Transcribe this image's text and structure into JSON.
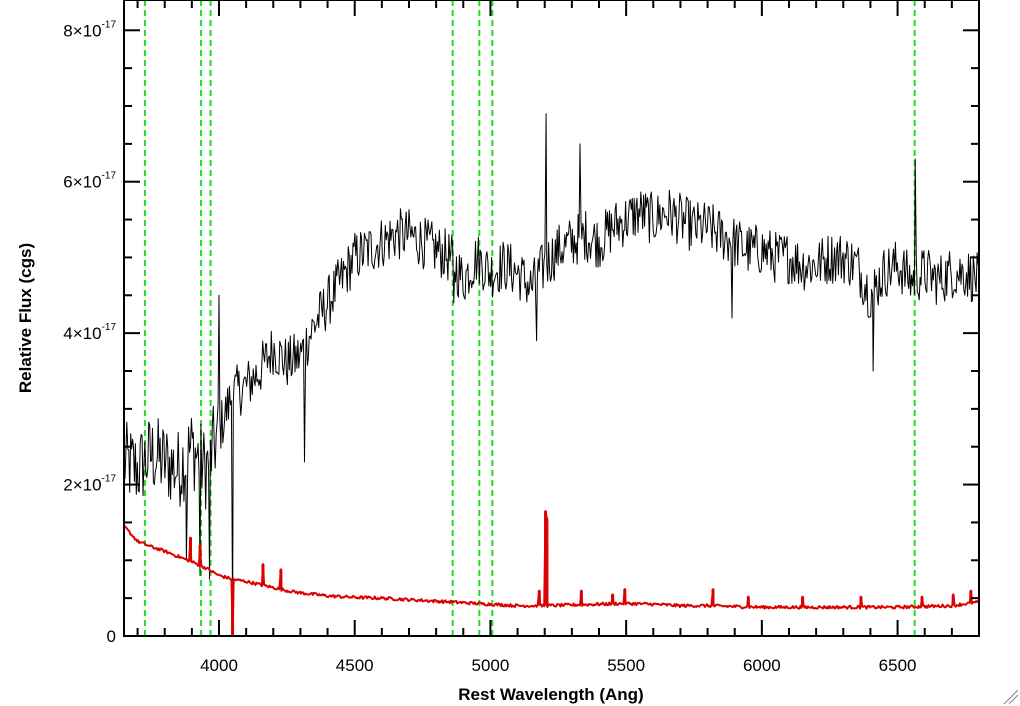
{
  "chart_data": {
    "type": "line",
    "title": "",
    "xlabel": "Rest Wavelength (Ang)",
    "ylabel": "Relative Flux (cgs)",
    "xlim": [
      3650,
      6800
    ],
    "ylim": [
      0,
      8.4e-17
    ],
    "x_ticks": [
      {
        "value": 4000,
        "label": "4000"
      },
      {
        "value": 4500,
        "label": "4500"
      },
      {
        "value": 5000,
        "label": "5000"
      },
      {
        "value": 5500,
        "label": "5500"
      },
      {
        "value": 6000,
        "label": "6000"
      },
      {
        "value": 6500,
        "label": "6500"
      }
    ],
    "y_ticks": [
      {
        "value": 0,
        "mantissa": "0",
        "exponent": ""
      },
      {
        "value": 2e-17,
        "mantissa": "2×10",
        "exponent": "-17"
      },
      {
        "value": 4e-17,
        "mantissa": "4×10",
        "exponent": "-17"
      },
      {
        "value": 6e-17,
        "mantissa": "6×10",
        "exponent": "-17"
      },
      {
        "value": 8e-17,
        "mantissa": "8×10",
        "exponent": "-17"
      }
    ],
    "grid": false,
    "line_markers": {
      "style": "dashed",
      "color": "#22dd22",
      "x": [
        3727,
        3934,
        3969,
        4861,
        4959,
        5007,
        6563
      ]
    },
    "series": [
      {
        "color": "#000000",
        "x": [
          3650,
          3700,
          3750,
          3800,
          3850,
          3900,
          3950,
          4000,
          4050,
          4100,
          4150,
          4200,
          4250,
          4300,
          4350,
          4400,
          4450,
          4500,
          4550,
          4600,
          4650,
          4700,
          4750,
          4800,
          4850,
          4900,
          4950,
          5000,
          5050,
          5100,
          5150,
          5200,
          5250,
          5300,
          5350,
          5400,
          5450,
          5500,
          5550,
          5600,
          5650,
          5700,
          5750,
          5800,
          5850,
          5900,
          5950,
          6000,
          6050,
          6100,
          6150,
          6200,
          6250,
          6300,
          6350,
          6400,
          6450,
          6500,
          6550,
          6600,
          6650,
          6700,
          6750,
          6800
        ],
        "y": [
          2.3e-17,
          2.2e-17,
          2.4e-17,
          2.3e-17,
          2.2e-17,
          2.5e-17,
          2.2e-17,
          2.7e-17,
          3.2e-17,
          3.3e-17,
          3.5e-17,
          3.8e-17,
          3.6e-17,
          3.7e-17,
          4.1e-17,
          4.4e-17,
          4.7e-17,
          5e-17,
          5.1e-17,
          5.2e-17,
          5.3e-17,
          5.3e-17,
          5.2e-17,
          5.1e-17,
          5e-17,
          4.7e-17,
          5e-17,
          4.8e-17,
          4.9e-17,
          4.8e-17,
          4.6e-17,
          4.9e-17,
          5.1e-17,
          5.2e-17,
          5.3e-17,
          5.2e-17,
          5.4e-17,
          5.5e-17,
          5.6e-17,
          5.5e-17,
          5.6e-17,
          5.5e-17,
          5.4e-17,
          5.4e-17,
          5.3e-17,
          5.2e-17,
          5.1e-17,
          5.1e-17,
          5e-17,
          5e-17,
          4.9e-17,
          4.9e-17,
          5e-17,
          5e-17,
          4.9e-17,
          4.5e-17,
          4.8e-17,
          4.9e-17,
          4.7e-17,
          4.8e-17,
          4.7e-17,
          4.8e-17,
          4.8e-17,
          4.7e-17
        ],
        "features": [
          {
            "x": 3880,
            "y": 1e-17
          },
          {
            "x": 3930,
            "y": 8e-18
          },
          {
            "x": 3965,
            "y": 7.5e-18
          },
          {
            "x": 4000,
            "y": 4.5e-17
          },
          {
            "x": 4050,
            "y": 2e-18
          },
          {
            "x": 4315,
            "y": 2.3e-17
          },
          {
            "x": 4865,
            "y": 4.4e-17
          },
          {
            "x": 5170,
            "y": 3.9e-17
          },
          {
            "x": 5205,
            "y": 6.9e-17
          },
          {
            "x": 5330,
            "y": 6.5e-17
          },
          {
            "x": 5890,
            "y": 4.2e-17
          },
          {
            "x": 6410,
            "y": 3.5e-17
          },
          {
            "x": 6565,
            "y": 6.3e-17
          }
        ]
      },
      {
        "color": "#dd0000",
        "x": [
          3650,
          3700,
          3750,
          3800,
          3850,
          3900,
          3950,
          4000,
          4050,
          4100,
          4150,
          4200,
          4250,
          4300,
          4350,
          4400,
          4450,
          4500,
          4600,
          4700,
          4800,
          4900,
          5000,
          5100,
          5200,
          5300,
          5400,
          5500,
          5600,
          5700,
          5800,
          5900,
          6000,
          6100,
          6200,
          6300,
          6400,
          6500,
          6600,
          6700,
          6800
        ],
        "y": [
          1.45e-17,
          1.25e-17,
          1.18e-17,
          1.12e-17,
          1.05e-17,
          9.8e-18,
          9e-18,
          8e-18,
          7.5e-18,
          7.2e-18,
          6.8e-18,
          6.4e-18,
          6e-18,
          5.7e-18,
          5.5e-18,
          5.3e-18,
          5.2e-18,
          5.1e-18,
          5e-18,
          4.8e-18,
          4.6e-18,
          4.4e-18,
          4.2e-18,
          4e-18,
          4e-18,
          4.1e-18,
          4.2e-18,
          4.3e-18,
          4.2e-18,
          4e-18,
          4e-18,
          3.9e-18,
          3.8e-18,
          3.8e-18,
          3.8e-18,
          3.8e-18,
          3.8e-18,
          3.8e-18,
          3.9e-18,
          4e-18,
          4.5e-18
        ],
        "spikes": [
          {
            "x": 3895,
            "y": 1.3e-17
          },
          {
            "x": 3930,
            "y": 1.2e-17
          },
          {
            "x": 4050,
            "y": 0.0
          },
          {
            "x": 4162,
            "y": 9.5e-18
          },
          {
            "x": 4228,
            "y": 8.8e-18
          },
          {
            "x": 5180,
            "y": 6e-18
          },
          {
            "x": 5203,
            "y": 1.65e-17
          },
          {
            "x": 5208,
            "y": 1.55e-17
          },
          {
            "x": 5335,
            "y": 6e-18
          },
          {
            "x": 5450,
            "y": 5.5e-18
          },
          {
            "x": 5495,
            "y": 6.2e-18
          },
          {
            "x": 5820,
            "y": 6.2e-18
          },
          {
            "x": 5950,
            "y": 5.2e-18
          },
          {
            "x": 6150,
            "y": 5.2e-18
          },
          {
            "x": 6365,
            "y": 5.2e-18
          },
          {
            "x": 6590,
            "y": 5.2e-18
          },
          {
            "x": 6705,
            "y": 5.5e-18
          },
          {
            "x": 6770,
            "y": 6e-18
          }
        ]
      }
    ]
  }
}
